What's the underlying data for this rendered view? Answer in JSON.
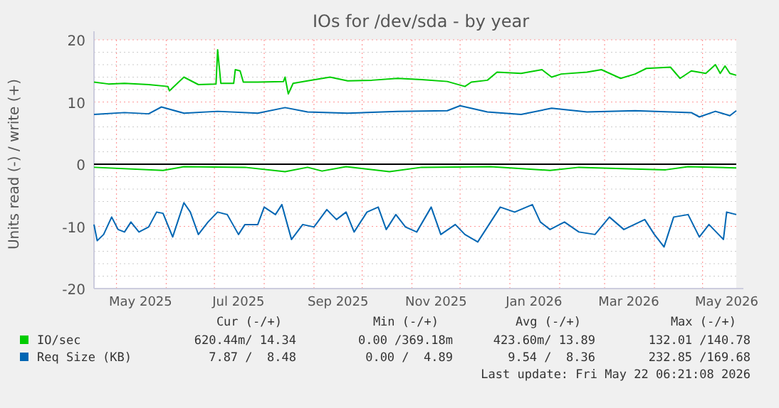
{
  "chart_data": {
    "type": "line",
    "title": "IOs for /dev/sda - by year",
    "ylabel": "Units read (-) / write (+)",
    "xlim": [
      "2025-04-17",
      "2026-05-22"
    ],
    "xticks": [
      {
        "value": "2025-05-01",
        "label": null
      },
      {
        "value": "2025-05-16",
        "label": "May 2025"
      },
      {
        "value": "2025-06-01",
        "label": null
      },
      {
        "value": "2025-07-01",
        "label": null
      },
      {
        "value": "2025-07-16",
        "label": "Jul 2025"
      },
      {
        "value": "2025-08-01",
        "label": null
      },
      {
        "value": "2025-09-01",
        "label": null
      },
      {
        "value": "2025-09-16",
        "label": "Sep 2025"
      },
      {
        "value": "2025-10-01",
        "label": null
      },
      {
        "value": "2025-11-01",
        "label": null
      },
      {
        "value": "2025-11-16",
        "label": "Nov 2025"
      },
      {
        "value": "2025-12-01",
        "label": null
      },
      {
        "value": "2026-01-01",
        "label": null
      },
      {
        "value": "2026-01-16",
        "label": "Jan 2026"
      },
      {
        "value": "2026-02-01",
        "label": null
      },
      {
        "value": "2026-03-01",
        "label": null
      },
      {
        "value": "2026-03-16",
        "label": "Mar 2026"
      },
      {
        "value": "2026-04-01",
        "label": null
      },
      {
        "value": "2026-05-01",
        "label": null
      },
      {
        "value": "2026-05-16",
        "label": "May 2026"
      }
    ],
    "ylim": [
      -20,
      20
    ],
    "yticks": [
      -20,
      {
        "value": -18,
        "label": null
      },
      {
        "value": -16,
        "label": null
      },
      {
        "value": -14,
        "label": null
      },
      {
        "value": -12,
        "label": null
      },
      -10,
      {
        "value": -8,
        "label": null
      },
      {
        "value": -6,
        "label": null
      },
      {
        "value": -4,
        "label": null
      },
      {
        "value": -2,
        "label": null
      },
      0,
      {
        "value": 2,
        "label": null
      },
      {
        "value": 4,
        "label": null
      },
      {
        "value": 6,
        "label": null
      },
      {
        "value": 8,
        "label": null
      },
      10,
      {
        "value": 12,
        "label": null
      },
      {
        "value": 14,
        "label": null
      },
      {
        "value": 16,
        "label": null
      },
      {
        "value": 18,
        "label": null
      },
      20
    ],
    "grid": true,
    "legend": "bottom",
    "line_style": "solid",
    "marker": "none",
    "ref_lines": [
      {
        "axis": "y",
        "value": 0,
        "label": null,
        "color": "#000000"
      }
    ],
    "series": [
      {
        "name": "IO/sec",
        "color": "#00cc00",
        "x": [
          "2025-04-17",
          "2025-04-26",
          "2025-05-06",
          "2025-05-21",
          "2025-06-02",
          "2025-06-03",
          "2025-06-12",
          "2025-06-21",
          "2025-07-02",
          "2025-07-03",
          "2025-07-05",
          "2025-07-13",
          "2025-07-14",
          "2025-07-17",
          "2025-07-19",
          "2025-07-28",
          "2025-08-13",
          "2025-08-14",
          "2025-08-16",
          "2025-08-19",
          "2025-08-28",
          "2025-09-11",
          "2025-09-22",
          "2025-10-07",
          "2025-10-23",
          "2025-11-07",
          "2025-11-23",
          "2025-12-04",
          "2025-12-08",
          "2025-12-18",
          "2025-12-24",
          "2026-01-08",
          "2026-01-21",
          "2026-01-27",
          "2026-02-02",
          "2026-02-18",
          "2026-02-27",
          "2026-03-11",
          "2026-03-20",
          "2026-03-27",
          "2026-04-11",
          "2026-04-17",
          "2026-04-24",
          "2026-05-03",
          "2026-05-09",
          "2026-05-12",
          "2026-05-15",
          "2026-05-18",
          "2026-05-22"
        ],
        "values": [
          13.2,
          12.9,
          13.0,
          12.8,
          12.5,
          11.8,
          14.0,
          12.8,
          12.9,
          18.4,
          13.0,
          13.0,
          15.2,
          15.0,
          13.2,
          13.2,
          13.3,
          14.0,
          11.3,
          13.0,
          13.4,
          14.0,
          13.4,
          13.5,
          13.8,
          13.6,
          13.3,
          12.5,
          13.2,
          13.5,
          14.8,
          14.6,
          15.2,
          14.0,
          14.5,
          14.8,
          15.2,
          13.8,
          14.5,
          15.4,
          15.6,
          13.8,
          15.0,
          14.6,
          16.0,
          14.6,
          15.8,
          14.6,
          14.3
        ]
      },
      {
        "color": "#00cc00",
        "x": [
          "2025-04-17",
          "2025-05-30",
          "2025-06-12",
          "2025-07-20",
          "2025-08-14",
          "2025-08-28",
          "2025-09-06",
          "2025-09-21",
          "2025-10-18",
          "2025-11-07",
          "2025-12-20",
          "2026-01-26",
          "2026-02-13",
          "2026-04-08",
          "2026-04-22",
          "2026-05-22"
        ],
        "values": [
          -0.5,
          -1.0,
          -0.4,
          -0.5,
          -1.2,
          -0.5,
          -1.1,
          -0.4,
          -1.2,
          -0.5,
          -0.4,
          -1.0,
          -0.5,
          -0.9,
          -0.4,
          -0.6
        ]
      },
      {
        "name": "Req Size (KB)",
        "color": "#0066b3",
        "x": [
          "2025-04-17",
          "2025-05-06",
          "2025-05-21",
          "2025-05-29",
          "2025-06-12",
          "2025-07-03",
          "2025-07-28",
          "2025-08-14",
          "2025-08-28",
          "2025-09-22",
          "2025-10-23",
          "2025-11-23",
          "2025-12-01",
          "2025-12-18",
          "2026-01-08",
          "2026-01-27",
          "2026-02-18",
          "2026-03-20",
          "2026-04-24",
          "2026-04-29",
          "2026-05-09",
          "2026-05-18",
          "2026-05-22"
        ],
        "values": [
          8.0,
          8.3,
          8.1,
          9.2,
          8.2,
          8.5,
          8.2,
          9.1,
          8.4,
          8.2,
          8.5,
          8.6,
          9.4,
          8.4,
          8.0,
          9.0,
          8.4,
          8.6,
          8.3,
          7.6,
          8.5,
          7.8,
          8.6
        ]
      },
      {
        "color": "#0066b3",
        "x": [
          "2025-04-17",
          "2025-04-19",
          "2025-04-23",
          "2025-04-28",
          "2025-05-02",
          "2025-05-06",
          "2025-05-10",
          "2025-05-15",
          "2025-05-21",
          "2025-05-26",
          "2025-05-30",
          "2025-06-05",
          "2025-06-12",
          "2025-06-16",
          "2025-06-21",
          "2025-06-27",
          "2025-07-03",
          "2025-07-09",
          "2025-07-16",
          "2025-07-20",
          "2025-07-28",
          "2025-08-01",
          "2025-08-08",
          "2025-08-12",
          "2025-08-18",
          "2025-08-25",
          "2025-09-01",
          "2025-09-09",
          "2025-09-15",
          "2025-09-21",
          "2025-09-26",
          "2025-10-04",
          "2025-10-11",
          "2025-10-16",
          "2025-10-22",
          "2025-10-28",
          "2025-11-04",
          "2025-11-13",
          "2025-11-19",
          "2025-11-28",
          "2025-12-04",
          "2025-12-12",
          "2025-12-20",
          "2025-12-26",
          "2026-01-04",
          "2026-01-15",
          "2026-01-20",
          "2026-01-26",
          "2026-02-04",
          "2026-02-13",
          "2026-02-23",
          "2026-03-04",
          "2026-03-13",
          "2026-03-26",
          "2026-04-01",
          "2026-04-07",
          "2026-04-13",
          "2026-04-22",
          "2026-04-29",
          "2026-05-05",
          "2026-05-14",
          "2026-05-16",
          "2026-05-22"
        ],
        "values": [
          -9.7,
          -12.3,
          -11.3,
          -8.5,
          -10.5,
          -10.9,
          -9.3,
          -10.9,
          -10.1,
          -7.7,
          -7.9,
          -11.7,
          -6.2,
          -7.7,
          -11.3,
          -9.3,
          -7.7,
          -8.1,
          -11.3,
          -9.7,
          -9.7,
          -6.9,
          -8.1,
          -6.5,
          -12.1,
          -9.7,
          -10.1,
          -7.3,
          -8.9,
          -7.7,
          -10.9,
          -7.7,
          -6.9,
          -10.5,
          -8.1,
          -10.1,
          -10.9,
          -6.9,
          -11.3,
          -9.7,
          -11.3,
          -12.5,
          -9.3,
          -6.9,
          -7.7,
          -6.5,
          -9.3,
          -10.5,
          -9.3,
          -10.9,
          -11.3,
          -8.5,
          -10.5,
          -8.9,
          -11.3,
          -13.3,
          -8.5,
          -8.1,
          -11.7,
          -9.7,
          -12.1,
          -7.7,
          -8.1
        ]
      }
    ],
    "annotations": [
      "Cur (-/+)",
      "Min (-/+)",
      "Avg (-/+)",
      "Max (-/+)",
      "620.44m/ 14.34",
      "0.00 /369.18m",
      "423.60m/ 13.89",
      "132.01 /140.78",
      "7.87 /  8.48",
      "0.00 /  4.89",
      "9.54 /  8.36",
      "232.85 /169.68",
      "Last update: Fri May 22 06:21:08 2026"
    ]
  }
}
